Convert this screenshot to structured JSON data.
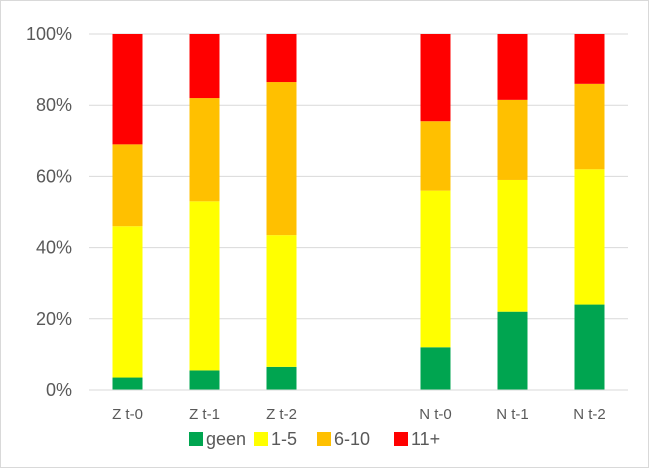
{
  "chart_data": {
    "type": "bar",
    "stacked": true,
    "percent": true,
    "categories": [
      "Z t-0",
      "Z t-1",
      "Z t-2",
      "",
      "N t-0",
      "N t-1",
      "N t-2"
    ],
    "series": [
      {
        "name": "geen",
        "color": "#00a550",
        "values": [
          3.5,
          5.5,
          6.5,
          null,
          12,
          22,
          24
        ]
      },
      {
        "name": "1-5",
        "color": "#ffff00",
        "values": [
          42.5,
          47.5,
          37,
          null,
          44,
          37,
          38
        ]
      },
      {
        "name": "6-10",
        "color": "#ffc000",
        "values": [
          23,
          29,
          43,
          null,
          19.5,
          22.5,
          24
        ]
      },
      {
        "name": "11+",
        "color": "#ff0000",
        "values": [
          31,
          18,
          13.5,
          null,
          24.5,
          18.5,
          14
        ]
      }
    ],
    "ylim": [
      0,
      100
    ],
    "yticks": [
      "0%",
      "20%",
      "40%",
      "60%",
      "80%",
      "100%"
    ],
    "grid": true,
    "legend": "bottom",
    "title": "",
    "xlabel": "",
    "ylabel": ""
  }
}
